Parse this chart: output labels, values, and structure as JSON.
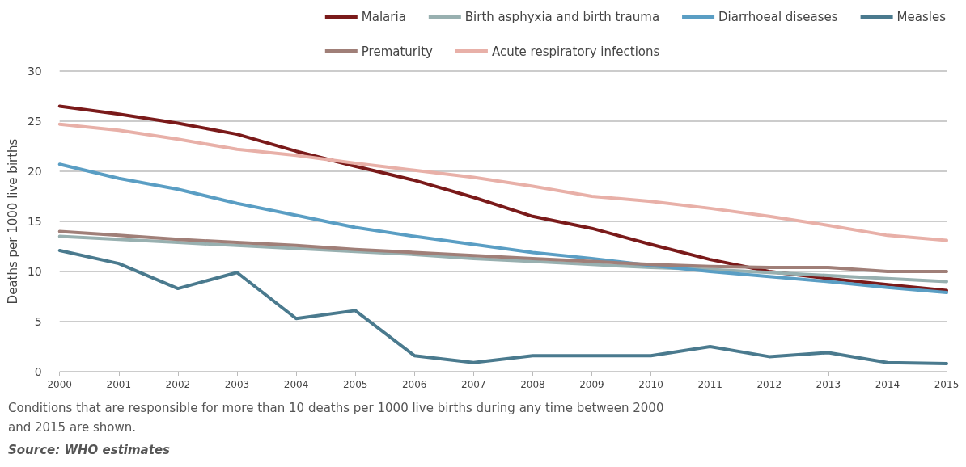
{
  "chart_data": {
    "type": "line",
    "ylabel": "Deaths per 1000 live births",
    "categories": [
      "2000",
      "2001",
      "2002",
      "2003",
      "2004",
      "2005",
      "2006",
      "2007",
      "2008",
      "2009",
      "2010",
      "2011",
      "2012",
      "2013",
      "2014",
      "2015"
    ],
    "series": [
      {
        "name": "Malaria",
        "color": "#7a1a1a",
        "values": [
          26.5,
          25.7,
          24.8,
          23.7,
          22,
          20.5,
          19.1,
          17.4,
          15.5,
          14.3,
          12.7,
          11.2,
          10,
          9.3,
          8.7,
          8.1
        ]
      },
      {
        "name": "Birth asphyxia and birth trauma",
        "color": "#98b0b0",
        "values": [
          13.5,
          13.2,
          12.9,
          12.6,
          12.3,
          12,
          11.7,
          11.3,
          11,
          10.7,
          10.4,
          10.2,
          9.9,
          9.6,
          9.3,
          9
        ]
      },
      {
        "name": "Diarrhoeal diseases",
        "color": "#5a9ec4",
        "values": [
          20.7,
          19.3,
          18.2,
          16.8,
          15.6,
          14.4,
          13.5,
          12.7,
          11.9,
          11.3,
          10.6,
          10,
          9.5,
          9,
          8.4,
          7.9
        ]
      },
      {
        "name": "Measles",
        "color": "#4a7a8e",
        "values": [
          12.1,
          10.8,
          8.3,
          9.9,
          5.3,
          6.1,
          1.6,
          0.9,
          1.6,
          1.6,
          1.6,
          2.5,
          1.5,
          1.9,
          0.9,
          0.8
        ]
      },
      {
        "name": "Prematurity",
        "color": "#a07f78",
        "values": [
          14,
          13.6,
          13.2,
          12.9,
          12.6,
          12.2,
          11.9,
          11.6,
          11.3,
          11,
          10.7,
          10.5,
          10.4,
          10.4,
          10,
          10
        ]
      },
      {
        "name": "Acute respiratory infections",
        "color": "#e8b0a8",
        "values": [
          24.7,
          24.1,
          23.2,
          22.2,
          21.6,
          20.8,
          20.1,
          19.4,
          18.5,
          17.5,
          17,
          16.3,
          15.5,
          14.6,
          13.6,
          13.1
        ]
      }
    ],
    "ylim": [
      0,
      30
    ],
    "yticks": [
      0,
      5,
      10,
      15,
      20,
      25,
      30
    ],
    "grid": "y",
    "legend": "top right",
    "marker": "none",
    "line_style": "solid",
    "annotations": [
      "Conditions that are responsible for more than 10 deaths per 1000 live births during any time between 2000 and 2015 are shown.",
      "Source: WHO estimates"
    ]
  }
}
